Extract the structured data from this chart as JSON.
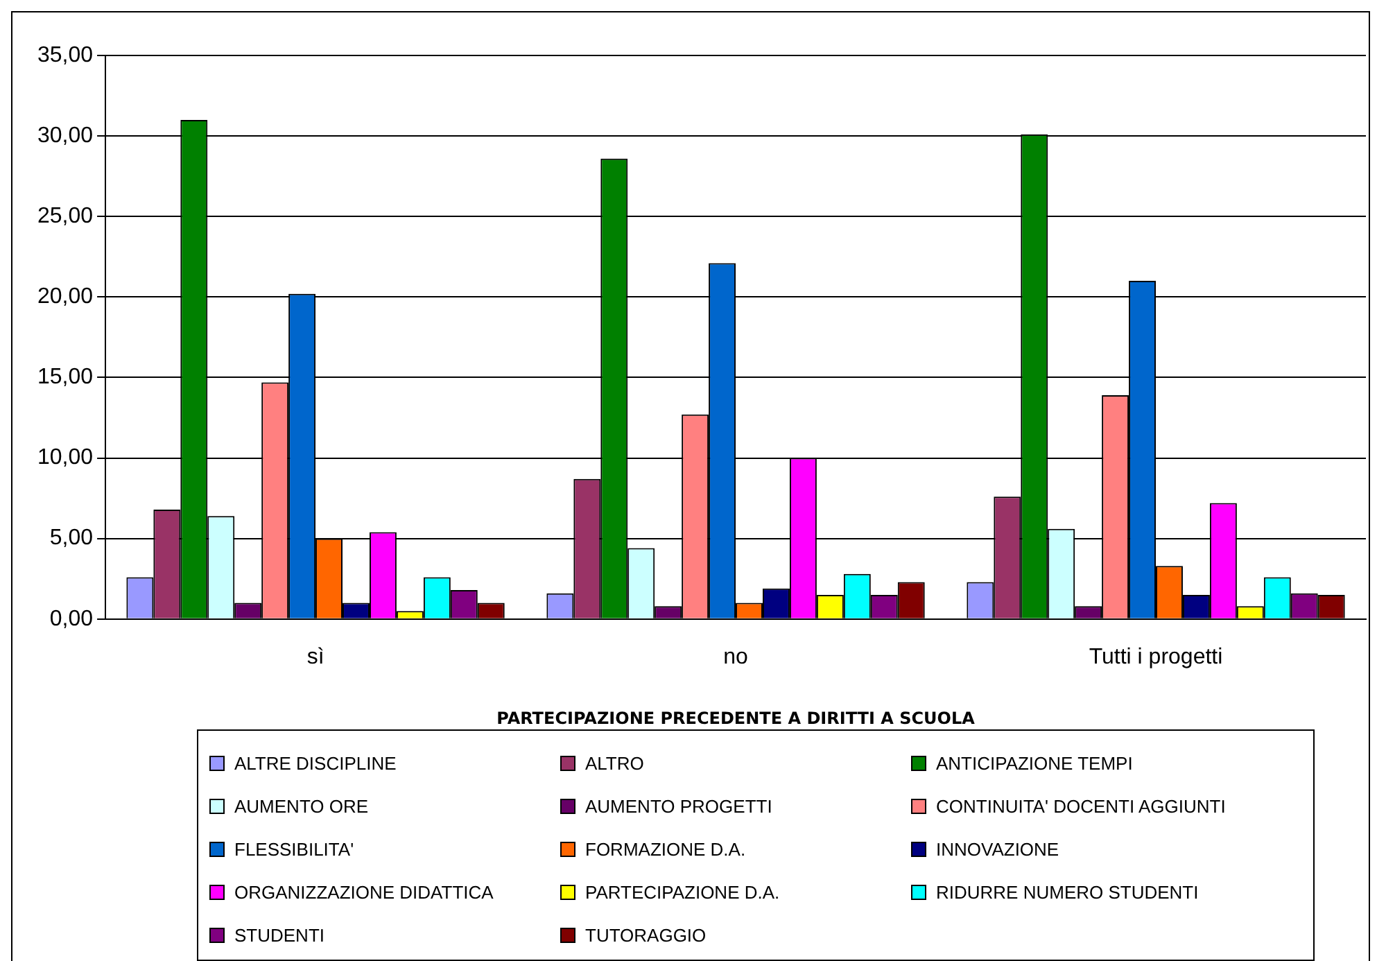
{
  "chart_data": {
    "type": "bar",
    "xlabel": "PARTECIPAZIONE PRECEDENTE A DIRITTI A SCUOLA",
    "categories": [
      "sì",
      "no",
      "Tutti i progetti"
    ],
    "ylim": [
      0,
      35
    ],
    "yticks": [
      {
        "value": 0,
        "label": "0,00"
      },
      {
        "value": 5,
        "label": "5,00"
      },
      {
        "value": 10,
        "label": "10,00"
      },
      {
        "value": 15,
        "label": "15,00"
      },
      {
        "value": 20,
        "label": "20,00"
      },
      {
        "value": 25,
        "label": "25,00"
      },
      {
        "value": 30,
        "label": "30,00"
      },
      {
        "value": 35,
        "label": "35,00"
      }
    ],
    "grid": "y",
    "legend": "bottom",
    "series": [
      {
        "name": "ALTRE DISCIPLINE",
        "color": "#9999ff",
        "values": [
          2.6,
          1.6,
          2.3
        ]
      },
      {
        "name": "ALTRO",
        "color": "#993366",
        "values": [
          6.8,
          8.7,
          7.6
        ]
      },
      {
        "name": "ANTICIPAZIONE TEMPI",
        "color": "#008000",
        "values": [
          31.0,
          28.6,
          30.1
        ]
      },
      {
        "name": "AUMENTO ORE",
        "color": "#ccffff",
        "values": [
          6.4,
          4.4,
          5.6
        ]
      },
      {
        "name": "AUMENTO PROGETTI",
        "color": "#660066",
        "values": [
          1.0,
          0.8,
          0.8
        ]
      },
      {
        "name": "CONTINUITA' DOCENTI AGGIUNTI",
        "color": "#ff8080",
        "values": [
          14.7,
          12.7,
          13.9
        ]
      },
      {
        "name": "FLESSIBILITA'",
        "color": "#0066cc",
        "values": [
          20.2,
          22.1,
          21.0
        ]
      },
      {
        "name": "FORMAZIONE D.A.",
        "color": "#ff6600",
        "values": [
          5.0,
          1.0,
          3.3
        ]
      },
      {
        "name": "INNOVAZIONE",
        "color": "#000080",
        "values": [
          1.0,
          1.9,
          1.5
        ]
      },
      {
        "name": "ORGANIZZAZIONE DIDATTICA",
        "color": "#ff00ff",
        "values": [
          5.4,
          10.0,
          7.2
        ]
      },
      {
        "name": "PARTECIPAZIONE D.A.",
        "color": "#ffff00",
        "values": [
          0.5,
          1.5,
          0.8
        ]
      },
      {
        "name": "RIDURRE NUMERO STUDENTI",
        "color": "#00ffff",
        "values": [
          2.6,
          2.8,
          2.6
        ]
      },
      {
        "name": "STUDENTI",
        "color": "#800080",
        "values": [
          1.8,
          1.5,
          1.6
        ]
      },
      {
        "name": "TUTORAGGIO",
        "color": "#800000",
        "values": [
          1.0,
          2.3,
          1.5
        ]
      }
    ]
  }
}
